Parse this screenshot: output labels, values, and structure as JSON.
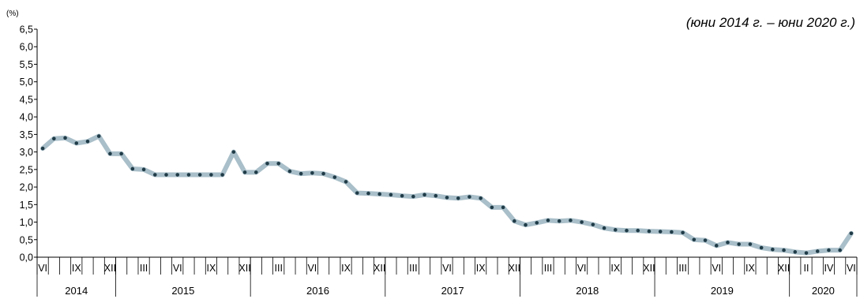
{
  "chart_data": {
    "type": "line",
    "subtitle": "(юни 2014 г. – юни 2020 г.)",
    "y_unit_label": "(%)",
    "ylim": [
      0,
      6.5
    ],
    "y_ticks": [
      "0,0",
      "0,5",
      "1,0",
      "1,5",
      "2,0",
      "2,5",
      "3,0",
      "3,5",
      "4,0",
      "4,5",
      "5,0",
      "5,5",
      "6,0",
      "6,5"
    ],
    "x_month_labels": [
      "VI",
      "IX",
      "XII",
      "III",
      "VI",
      "IX",
      "XII",
      "III",
      "VI",
      "IX",
      "XII",
      "III",
      "VI",
      "IX",
      "XII",
      "III",
      "VI",
      "IX",
      "XII",
      "III",
      "VI",
      "IX",
      "XII",
      "II",
      "IV",
      "VI"
    ],
    "x_year_labels": [
      "2014",
      "2015",
      "2016",
      "2017",
      "2018",
      "2019",
      "2020"
    ],
    "series": [
      {
        "color": "#a9bfc9",
        "marker_color": "#1f3b47",
        "values": [
          3.1,
          3.38,
          3.4,
          3.25,
          3.3,
          3.45,
          2.95,
          2.95,
          2.52,
          2.5,
          2.35,
          2.35,
          2.35,
          2.35,
          2.35,
          2.35,
          2.35,
          3.0,
          2.42,
          2.42,
          2.67,
          2.67,
          2.45,
          2.38,
          2.4,
          2.38,
          2.28,
          2.15,
          1.83,
          1.82,
          1.8,
          1.78,
          1.75,
          1.73,
          1.78,
          1.75,
          1.7,
          1.68,
          1.72,
          1.68,
          1.42,
          1.42,
          1.03,
          0.92,
          0.98,
          1.05,
          1.03,
          1.05,
          1.0,
          0.93,
          0.83,
          0.78,
          0.76,
          0.76,
          0.74,
          0.73,
          0.72,
          0.7,
          0.5,
          0.48,
          0.33,
          0.42,
          0.37,
          0.37,
          0.27,
          0.22,
          0.2,
          0.15,
          0.12,
          0.17,
          0.2,
          0.2,
          0.68
        ]
      }
    ]
  }
}
